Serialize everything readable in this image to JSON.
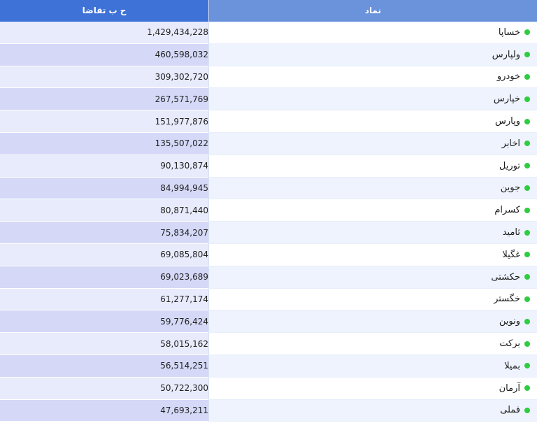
{
  "table": {
    "headers": {
      "symbol": "نماد",
      "demand": "ح ب تقاضا"
    },
    "status_color": "#2ecc40",
    "rows": [
      {
        "symbol": "خساپا",
        "demand": "1,429,434,228"
      },
      {
        "symbol": "ولپارس",
        "demand": "460,598,032"
      },
      {
        "symbol": "خودرو",
        "demand": "309,302,720"
      },
      {
        "symbol": "خپارس",
        "demand": "267,571,769"
      },
      {
        "symbol": "وپارس",
        "demand": "151,977,876"
      },
      {
        "symbol": "اخابر",
        "demand": "135,507,022"
      },
      {
        "symbol": "توریل",
        "demand": "90,130,874"
      },
      {
        "symbol": "جوین",
        "demand": "84,994,945"
      },
      {
        "symbol": "کسرام",
        "demand": "80,871,440"
      },
      {
        "symbol": "ثامید",
        "demand": "75,834,207"
      },
      {
        "symbol": "غگیلا",
        "demand": "69,085,804"
      },
      {
        "symbol": "حکشتی",
        "demand": "69,023,689"
      },
      {
        "symbol": "خگستر",
        "demand": "61,277,174"
      },
      {
        "symbol": "ونوین",
        "demand": "59,776,424"
      },
      {
        "symbol": "برکت",
        "demand": "58,015,162"
      },
      {
        "symbol": "بمیلا",
        "demand": "56,514,251"
      },
      {
        "symbol": "آرمان",
        "demand": "50,722,300"
      },
      {
        "symbol": "فملی",
        "demand": "47,693,211"
      }
    ]
  }
}
